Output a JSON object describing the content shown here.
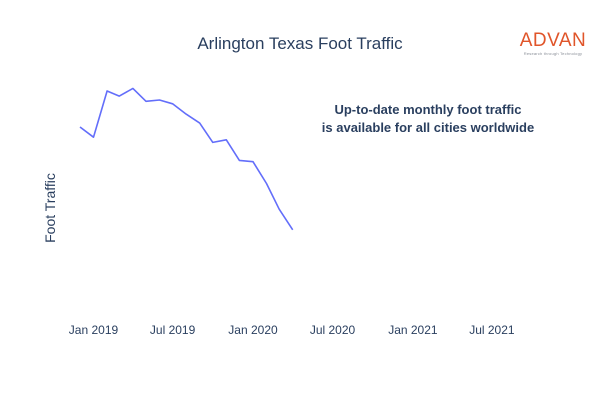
{
  "title": "Arlington Texas Foot Traffic",
  "logo": {
    "wordmark": "ADVAN",
    "tagline": "Research through Technology",
    "color": "#e0552a"
  },
  "annotation": {
    "line1": "Up-to-date monthly foot traffic",
    "line2": "is available for all cities worldwide"
  },
  "chart_data": {
    "type": "line",
    "title": "Arlington Texas Foot Traffic",
    "xlabel": "",
    "ylabel": "Foot Traffic",
    "x_tick_labels": [
      "Jan 2019",
      "Jul 2019",
      "Jan 2020",
      "Jul 2020",
      "Jan 2021",
      "Jul 2021"
    ],
    "x_range": [
      "2018-12-01",
      "2021-09-01"
    ],
    "y_range": [
      0,
      100
    ],
    "y_ticks_shown": false,
    "grid": false,
    "legend": "none",
    "line_color": "#636efa",
    "series": [
      {
        "x": [
          "2018-12-01",
          "2019-01-01",
          "2019-02-01",
          "2019-03-01",
          "2019-04-01",
          "2019-05-01",
          "2019-06-01",
          "2019-07-01",
          "2019-08-01",
          "2019-09-01",
          "2019-10-01",
          "2019-11-01",
          "2019-12-01",
          "2020-01-01",
          "2020-02-01",
          "2020-03-01",
          "2020-04-01"
        ],
        "y": [
          72,
          68,
          86,
          84,
          87,
          82,
          82.5,
          81,
          77,
          73.5,
          66,
          67,
          59,
          58.5,
          50,
          40,
          32
        ]
      }
    ]
  }
}
